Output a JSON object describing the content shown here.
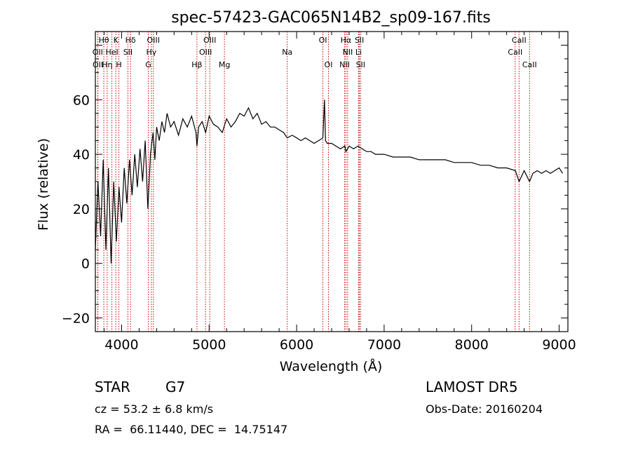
{
  "chart_data": {
    "type": "line",
    "title": "spec-57423-GAC065N14B2_sp09-167.fits",
    "xlabel": "Wavelength (Å)",
    "ylabel": "Flux (relative)",
    "xlim": [
      3700,
      9100
    ],
    "ylim": [
      -25,
      85
    ],
    "xticks": [
      4000,
      5000,
      6000,
      7000,
      8000,
      9000
    ],
    "yticks": [
      -20,
      0,
      20,
      40,
      60
    ],
    "grid": false,
    "line_color": "#000000",
    "marker_color": "#cc0000",
    "series": [
      {
        "values_x": [
          3700,
          3730,
          3760,
          3790,
          3820,
          3850,
          3880,
          3910,
          3940,
          3970,
          4000,
          4030,
          4060,
          4090,
          4120,
          4150,
          4180,
          4210,
          4240,
          4270,
          4300,
          4330,
          4360,
          4380,
          4400,
          4430,
          4460,
          4490,
          4520,
          4560,
          4600,
          4650,
          4700,
          4750,
          4800,
          4850,
          4861,
          4880,
          4920,
          4960,
          5000,
          5050,
          5100,
          5150,
          5200,
          5250,
          5300,
          5350,
          5400,
          5450,
          5500,
          5550,
          5600,
          5650,
          5700,
          5750,
          5800,
          5850,
          5893,
          5950,
          6000,
          6050,
          6100,
          6150,
          6200,
          6250,
          6300,
          6318,
          6330,
          6350,
          6400,
          6450,
          6500,
          6550,
          6563,
          6600,
          6650,
          6700,
          6750,
          6800,
          6850,
          6900,
          6950,
          7000,
          7100,
          7200,
          7300,
          7400,
          7500,
          7600,
          7700,
          7800,
          7900,
          8000,
          8100,
          8200,
          8300,
          8400,
          8500,
          8542,
          8600,
          8662,
          8700,
          8750,
          8800,
          8850,
          8900,
          8950,
          9000,
          9040
        ],
        "values_y": [
          5,
          30,
          10,
          38,
          5,
          35,
          0,
          30,
          8,
          28,
          15,
          35,
          22,
          38,
          25,
          40,
          28,
          42,
          30,
          45,
          20,
          40,
          48,
          38,
          50,
          45,
          52,
          48,
          55,
          50,
          52,
          47,
          53,
          50,
          54,
          48,
          43,
          50,
          52,
          48,
          54,
          51,
          50,
          48,
          53,
          50,
          52,
          55,
          54,
          57,
          53,
          55,
          51,
          52,
          50,
          50,
          49,
          48,
          46,
          47,
          46,
          45,
          46,
          45,
          44,
          45,
          46,
          60,
          45,
          44,
          44,
          43,
          42,
          43,
          41,
          43,
          42,
          43,
          42,
          41,
          41,
          40,
          40,
          40,
          39,
          39,
          39,
          38,
          38,
          38,
          38,
          37,
          37,
          37,
          36,
          36,
          35,
          35,
          34,
          30,
          34,
          30,
          33,
          34,
          33,
          34,
          33,
          34,
          35,
          33
        ]
      }
    ],
    "lines": [
      {
        "label": "Hθ",
        "x": 3797,
        "row": 1
      },
      {
        "label": "K",
        "x": 3934,
        "row": 1
      },
      {
        "label": "Hδ",
        "x": 4102,
        "row": 1
      },
      {
        "label": "OIII",
        "x": 4363,
        "row": 1
      },
      {
        "label": "OIII",
        "x": 5007,
        "row": 1
      },
      {
        "label": "OI",
        "x": 6300,
        "row": 1
      },
      {
        "label": "Hα",
        "x": 6563,
        "row": 1
      },
      {
        "label": "SII",
        "x": 6717,
        "row": 1
      },
      {
        "label": "CaII",
        "x": 8542,
        "row": 1
      },
      {
        "label": "OII",
        "x": 3727,
        "row": 2
      },
      {
        "label": "HeI",
        "x": 3889,
        "row": 2
      },
      {
        "label": "SII",
        "x": 4072,
        "row": 2
      },
      {
        "label": "Hγ",
        "x": 4340,
        "row": 2
      },
      {
        "label": "OIII",
        "x": 4959,
        "row": 2
      },
      {
        "label": "Na",
        "x": 5893,
        "row": 2
      },
      {
        "label": "NII",
        "x": 6583,
        "row": 2
      },
      {
        "label": "Li",
        "x": 6708,
        "row": 2
      },
      {
        "label": "CaII",
        "x": 8498,
        "row": 2
      },
      {
        "label": "OII",
        "x": 3729,
        "row": 3
      },
      {
        "label": "Hη",
        "x": 3835,
        "row": 3
      },
      {
        "label": "H",
        "x": 3969,
        "row": 3
      },
      {
        "label": "G",
        "x": 4305,
        "row": 3
      },
      {
        "label": "Hβ",
        "x": 4861,
        "row": 3
      },
      {
        "label": "Mg",
        "x": 5175,
        "row": 3
      },
      {
        "label": "OI",
        "x": 6364,
        "row": 3
      },
      {
        "label": "NII",
        "x": 6548,
        "row": 3
      },
      {
        "label": "SII",
        "x": 6731,
        "row": 3
      },
      {
        "label": "CaII",
        "x": 8662,
        "row": 3
      }
    ]
  },
  "info": {
    "class": "STAR",
    "subclass": "G7",
    "survey": "LAMOST DR5",
    "cz": "cz = 53.2 ± 6.8 km/s",
    "obs_date": "Obs-Date: 20160204",
    "coords": "RA =  66.11440, DEC =  14.75147"
  }
}
